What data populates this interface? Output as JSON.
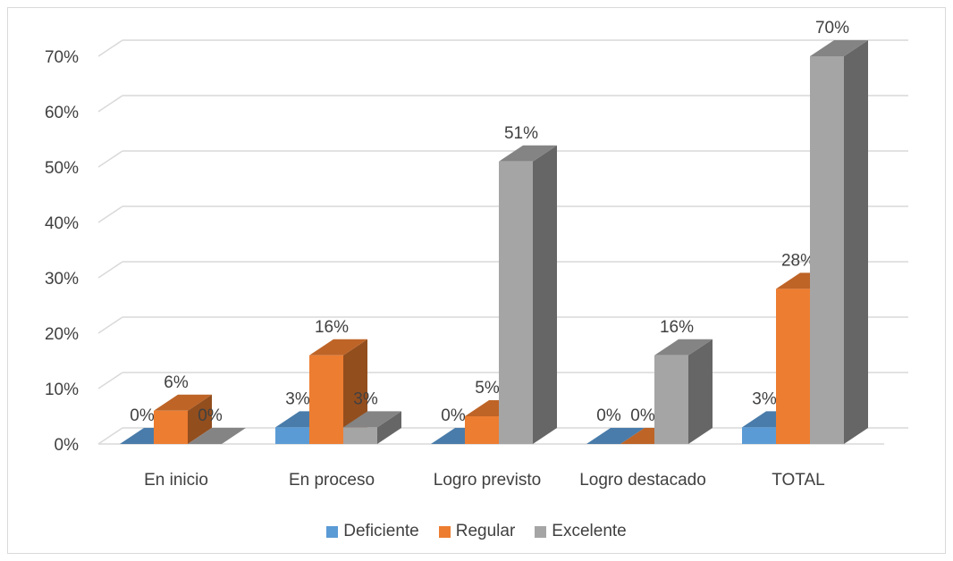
{
  "chart_data": {
    "type": "bar",
    "categories": [
      "En inicio",
      "En proceso",
      "Logro previsto",
      "Logro destacado",
      "TOTAL"
    ],
    "series": [
      {
        "name": "Deficiente",
        "values": [
          0,
          3,
          0,
          0,
          3
        ],
        "labels": [
          "0%",
          "3%",
          "0%",
          "0%",
          "3%"
        ],
        "color": "#5b9bd5"
      },
      {
        "name": "Regular",
        "values": [
          6,
          16,
          5,
          0,
          28
        ],
        "labels": [
          "6%",
          "16%",
          "5%",
          "0%",
          "28%"
        ],
        "color": "#ed7d31"
      },
      {
        "name": "Excelente",
        "values": [
          0,
          3,
          51,
          16,
          70
        ],
        "labels": [
          "0%",
          "3%",
          "51%",
          "16%",
          "70%"
        ],
        "color": "#a5a5a5"
      }
    ],
    "y_ticks": [
      "0%",
      "10%",
      "20%",
      "30%",
      "40%",
      "50%",
      "60%",
      "70%"
    ],
    "ylim": [
      0,
      70
    ],
    "grid": true,
    "legend_position": "bottom",
    "title": "",
    "xlabel": "",
    "ylabel": ""
  }
}
